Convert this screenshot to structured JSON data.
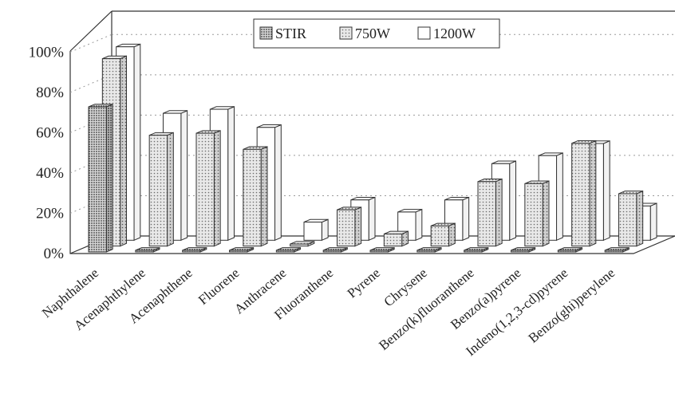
{
  "chart_data": {
    "type": "bar",
    "title": "",
    "xlabel": "",
    "ylabel": "",
    "ylim": [
      0,
      100
    ],
    "y_ticks": [
      "0%",
      "20%",
      "40%",
      "60%",
      "80%",
      "100%"
    ],
    "legend_position": "top-center",
    "categories": [
      "Naphthalene",
      "Acenaphthylene",
      "Acenaphthene",
      "Fluorene",
      "Anthracene",
      "Fluoranthene",
      "Pyrene",
      "Chrysene",
      "Benzo(k)fluoranthene",
      "Benzo(a)pyrene",
      "Indeno(1,2,3-cd)pyrene",
      "Benzo(ghi)perylene"
    ],
    "series": [
      {
        "name": "STIR",
        "pattern": "dense-dots",
        "values": [
          72,
          0,
          0,
          0,
          0,
          0,
          0,
          0,
          0,
          0,
          0,
          0
        ]
      },
      {
        "name": "750W",
        "pattern": "light-dots",
        "values": [
          93,
          55,
          56,
          48,
          1,
          18,
          6,
          10,
          32,
          31,
          51,
          26
        ]
      },
      {
        "name": "1200W",
        "pattern": "white",
        "values": [
          96,
          63,
          65,
          56,
          9,
          20,
          14,
          20,
          38,
          42,
          48,
          17
        ]
      }
    ]
  }
}
